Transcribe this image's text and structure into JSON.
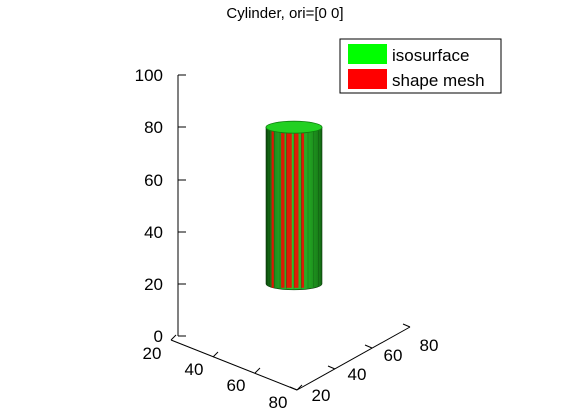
{
  "chart_data": {
    "type": "3d-surface",
    "title": "Cylinder, ori=[0 0]",
    "xlabel": "",
    "ylabel": "",
    "zlabel": "",
    "xlim": [
      20,
      80
    ],
    "ylim": [
      20,
      80
    ],
    "zlim": [
      0,
      100
    ],
    "x_ticks": [
      "20",
      "40",
      "60",
      "80"
    ],
    "y_ticks": [
      "20",
      "40",
      "60",
      "80"
    ],
    "z_ticks": [
      "0",
      "20",
      "40",
      "60",
      "80",
      "100"
    ],
    "grid": false,
    "legend_position": "top-right",
    "series": [
      {
        "name": "isosurface",
        "color": "#00ff00"
      },
      {
        "name": "shape mesh",
        "color": "#ff0000"
      }
    ],
    "cylinder": {
      "z_min": 20,
      "z_max": 80
    }
  }
}
